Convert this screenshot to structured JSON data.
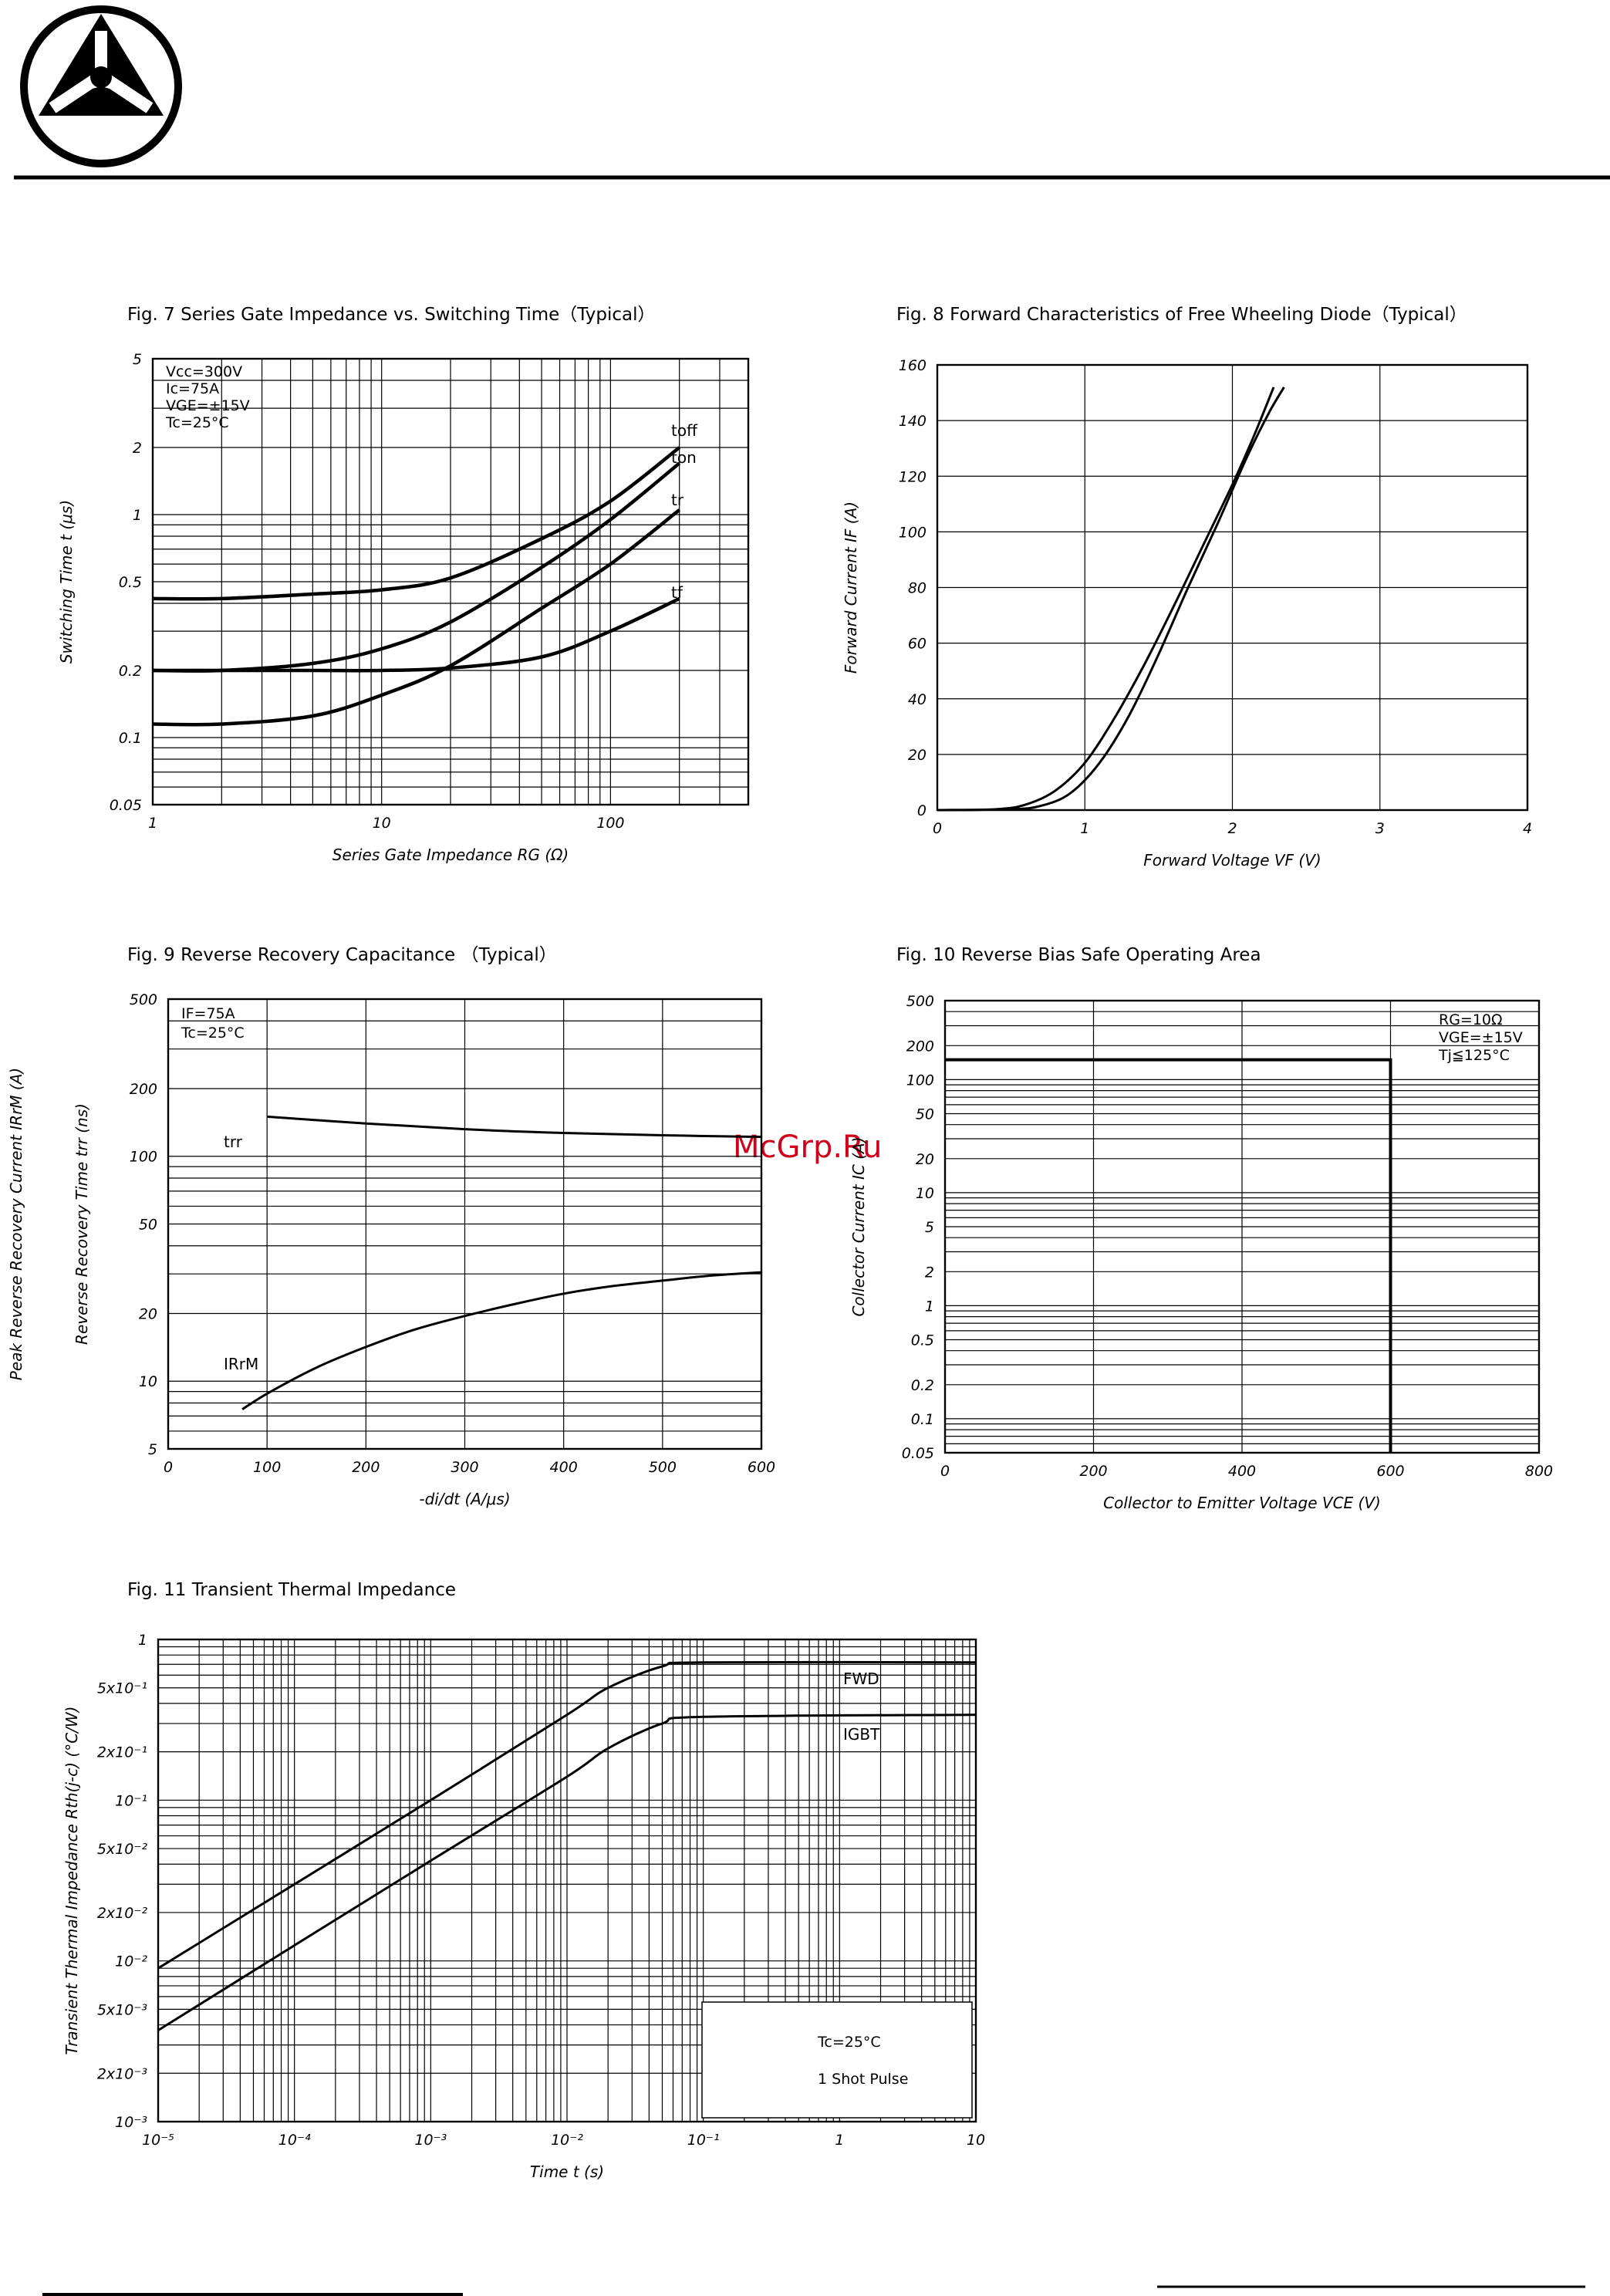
{
  "header": {
    "logo": "triangle-in-circle company logo"
  },
  "colors": {
    "ink": "#000000",
    "watermark": "#d0021b",
    "paper": "#ffffff"
  },
  "watermark": "McGrp.Ru",
  "chart_data": [
    {
      "id": "fig7",
      "type": "line",
      "title": "Fig. 7  Series Gate Impedance vs. Switching Time（Typical）",
      "xlabel": "Series Gate Impedance RG (Ω)",
      "ylabel": "Switching Time t (μs)",
      "xscale": "log",
      "yscale": "log",
      "xlim": [
        1,
        400
      ],
      "ylim": [
        0.05,
        5
      ],
      "xticks": [
        1,
        10,
        100
      ],
      "xtick_labels": [
        "1",
        "10",
        "100"
      ],
      "yticks": [
        0.05,
        0.1,
        0.2,
        0.5,
        1,
        2,
        5
      ],
      "ytick_labels": [
        "0.05",
        "0.1",
        "0.2",
        "0.5",
        "1",
        "2",
        "5"
      ],
      "grid": true,
      "conditions": [
        "Vcc=300V",
        "Ic=75A",
        "VGE=±15V",
        "Tc=25°C"
      ],
      "series": [
        {
          "name": "toff",
          "x": [
            1,
            2,
            5,
            10,
            20,
            50,
            100,
            200
          ],
          "y": [
            0.42,
            0.42,
            0.44,
            0.46,
            0.52,
            0.78,
            1.15,
            2.0
          ]
        },
        {
          "name": "ton",
          "x": [
            1,
            2,
            5,
            10,
            20,
            50,
            100,
            200
          ],
          "y": [
            0.2,
            0.2,
            0.215,
            0.25,
            0.33,
            0.58,
            0.95,
            1.7
          ]
        },
        {
          "name": "tr",
          "x": [
            1,
            2,
            5,
            10,
            20,
            50,
            100,
            200
          ],
          "y": [
            0.115,
            0.115,
            0.125,
            0.155,
            0.21,
            0.38,
            0.6,
            1.05
          ]
        },
        {
          "name": "tf",
          "x": [
            1,
            2,
            5,
            10,
            20,
            50,
            100,
            200
          ],
          "y": [
            0.2,
            0.2,
            0.2,
            0.2,
            0.205,
            0.23,
            0.3,
            0.42
          ]
        }
      ]
    },
    {
      "id": "fig8",
      "type": "line",
      "title": "Fig. 8  Forward Characteristics of Free Wheeling Diode（Typical）",
      "xlabel": "Forward Voltage VF (V)",
      "ylabel": "Forward Current IF (A)",
      "xlim": [
        0,
        4
      ],
      "ylim": [
        0,
        160
      ],
      "xticks": [
        0,
        1,
        2,
        3,
        4
      ],
      "xtick_labels": [
        "0",
        "1",
        "2",
        "3",
        "4"
      ],
      "yticks": [
        0,
        20,
        40,
        60,
        80,
        100,
        120,
        140,
        160
      ],
      "ytick_labels": [
        "0",
        "20",
        "40",
        "60",
        "80",
        "100",
        "120",
        "140",
        "160"
      ],
      "grid": true,
      "series": [
        {
          "x": [
            0,
            0.4,
            0.6,
            0.8,
            1.0,
            1.2,
            1.4,
            1.6,
            1.8,
            2.0,
            2.15,
            2.28
          ],
          "y": [
            0,
            0.3,
            2,
            7,
            17,
            33,
            52,
            73,
            95,
            117,
            135,
            152
          ]
        },
        {
          "x": [
            0,
            0.5,
            0.7,
            0.9,
            1.1,
            1.3,
            1.5,
            1.7,
            1.9,
            2.1,
            2.25,
            2.35
          ],
          "y": [
            0,
            0.3,
            1.5,
            6,
            17,
            34,
            56,
            80,
            103,
            127,
            143,
            152
          ]
        }
      ]
    },
    {
      "id": "fig9",
      "type": "line",
      "title": "Fig. 9  Reverse Recovery Capacitance （Typical）",
      "xlabel": "-di/dt (A/μs)",
      "ylabel": "Reverse Recovery Time trr (ns)",
      "ylabel2": "Peak Reverse Recovery Current IRrM (A)",
      "xlim": [
        0,
        600
      ],
      "ylim": [
        5,
        500
      ],
      "yscale": "log",
      "xticks": [
        0,
        100,
        200,
        300,
        400,
        500,
        600
      ],
      "xtick_labels": [
        "0",
        "100",
        "200",
        "300",
        "400",
        "500",
        "600"
      ],
      "yticks": [
        5,
        10,
        20,
        50,
        100,
        200,
        500
      ],
      "ytick_labels": [
        "5",
        "10",
        "20",
        "50",
        "100",
        "200",
        "500"
      ],
      "grid": true,
      "conditions": [
        "IF=75A",
        "Tc=25°C"
      ],
      "series": [
        {
          "name": "trr",
          "x": [
            100,
            200,
            300,
            400,
            500,
            600
          ],
          "y": [
            150,
            140,
            132,
            127,
            124,
            122
          ]
        },
        {
          "name": "IRrM",
          "x": [
            75,
            100,
            150,
            200,
            250,
            300,
            350,
            400,
            450,
            500,
            550,
            600
          ],
          "y": [
            7.5,
            8.8,
            11.5,
            14.2,
            17,
            19.5,
            22,
            24.5,
            26.5,
            28,
            29.5,
            30.5
          ]
        }
      ]
    },
    {
      "id": "fig10",
      "type": "line",
      "title": "Fig. 10  Reverse Bias Safe Operating Area",
      "xlabel": "Collector to Emitter Voltage VCE (V)",
      "ylabel": "Collector Current IC (A)",
      "xlim": [
        0,
        800
      ],
      "ylim": [
        0.05,
        500
      ],
      "yscale": "log",
      "xticks": [
        0,
        200,
        400,
        600,
        800
      ],
      "xtick_labels": [
        "0",
        "200",
        "400",
        "600",
        "800"
      ],
      "yticks": [
        0.05,
        0.1,
        0.2,
        0.5,
        1,
        2,
        5,
        10,
        20,
        50,
        100,
        200,
        500
      ],
      "ytick_labels": [
        "0.05",
        "0.1",
        "0.2",
        "0.5",
        "1",
        "2",
        "5",
        "10",
        "20",
        "50",
        "100",
        "200",
        "500"
      ],
      "grid": true,
      "conditions": [
        "RG=10Ω",
        "VGE=±15V",
        "Tj≦125°C"
      ],
      "series": [
        {
          "x": [
            0,
            600,
            600
          ],
          "y": [
            150,
            150,
            0.05
          ]
        }
      ]
    },
    {
      "id": "fig11",
      "type": "line",
      "title": "Fig. 11  Transient Thermal Impedance",
      "xlabel": "Time t (s)",
      "ylabel": "Transient Thermal Impedance Rth(j-c) (°C/W)",
      "xlim": [
        1e-05,
        10
      ],
      "ylim": [
        0.001,
        1
      ],
      "xscale": "log",
      "yscale": "log",
      "xticks": [
        1e-05,
        0.0001,
        0.001,
        0.01,
        0.1,
        1,
        10
      ],
      "xtick_labels": [
        "10⁻⁵",
        "10⁻⁴",
        "10⁻³",
        "10⁻²",
        "10⁻¹",
        "1",
        "10"
      ],
      "yticks": [
        0.001,
        0.002,
        0.005,
        0.01,
        0.02,
        0.05,
        0.1,
        0.2,
        0.5,
        1
      ],
      "ytick_labels": [
        "10⁻³",
        "2x10⁻³",
        "5x10⁻³",
        "10⁻²",
        "2x10⁻²",
        "5x10⁻²",
        "10⁻¹",
        "2x10⁻¹",
        "5x10⁻¹",
        "1"
      ],
      "grid": true,
      "conditions": [
        "Tc=25°C",
        "1 Shot Pulse"
      ],
      "series": [
        {
          "name": "FWD",
          "x": [
            1e-05,
            0.0001,
            0.001,
            0.01,
            0.02,
            0.05,
            0.1,
            10
          ],
          "y": [
            0.009,
            0.03,
            0.1,
            0.34,
            0.5,
            0.68,
            0.72,
            0.72
          ]
        },
        {
          "name": "IGBT",
          "x": [
            1e-05,
            0.0001,
            0.001,
            0.01,
            0.02,
            0.05,
            0.1,
            10
          ],
          "y": [
            0.0037,
            0.0125,
            0.042,
            0.14,
            0.21,
            0.3,
            0.33,
            0.34
          ]
        }
      ]
    }
  ]
}
